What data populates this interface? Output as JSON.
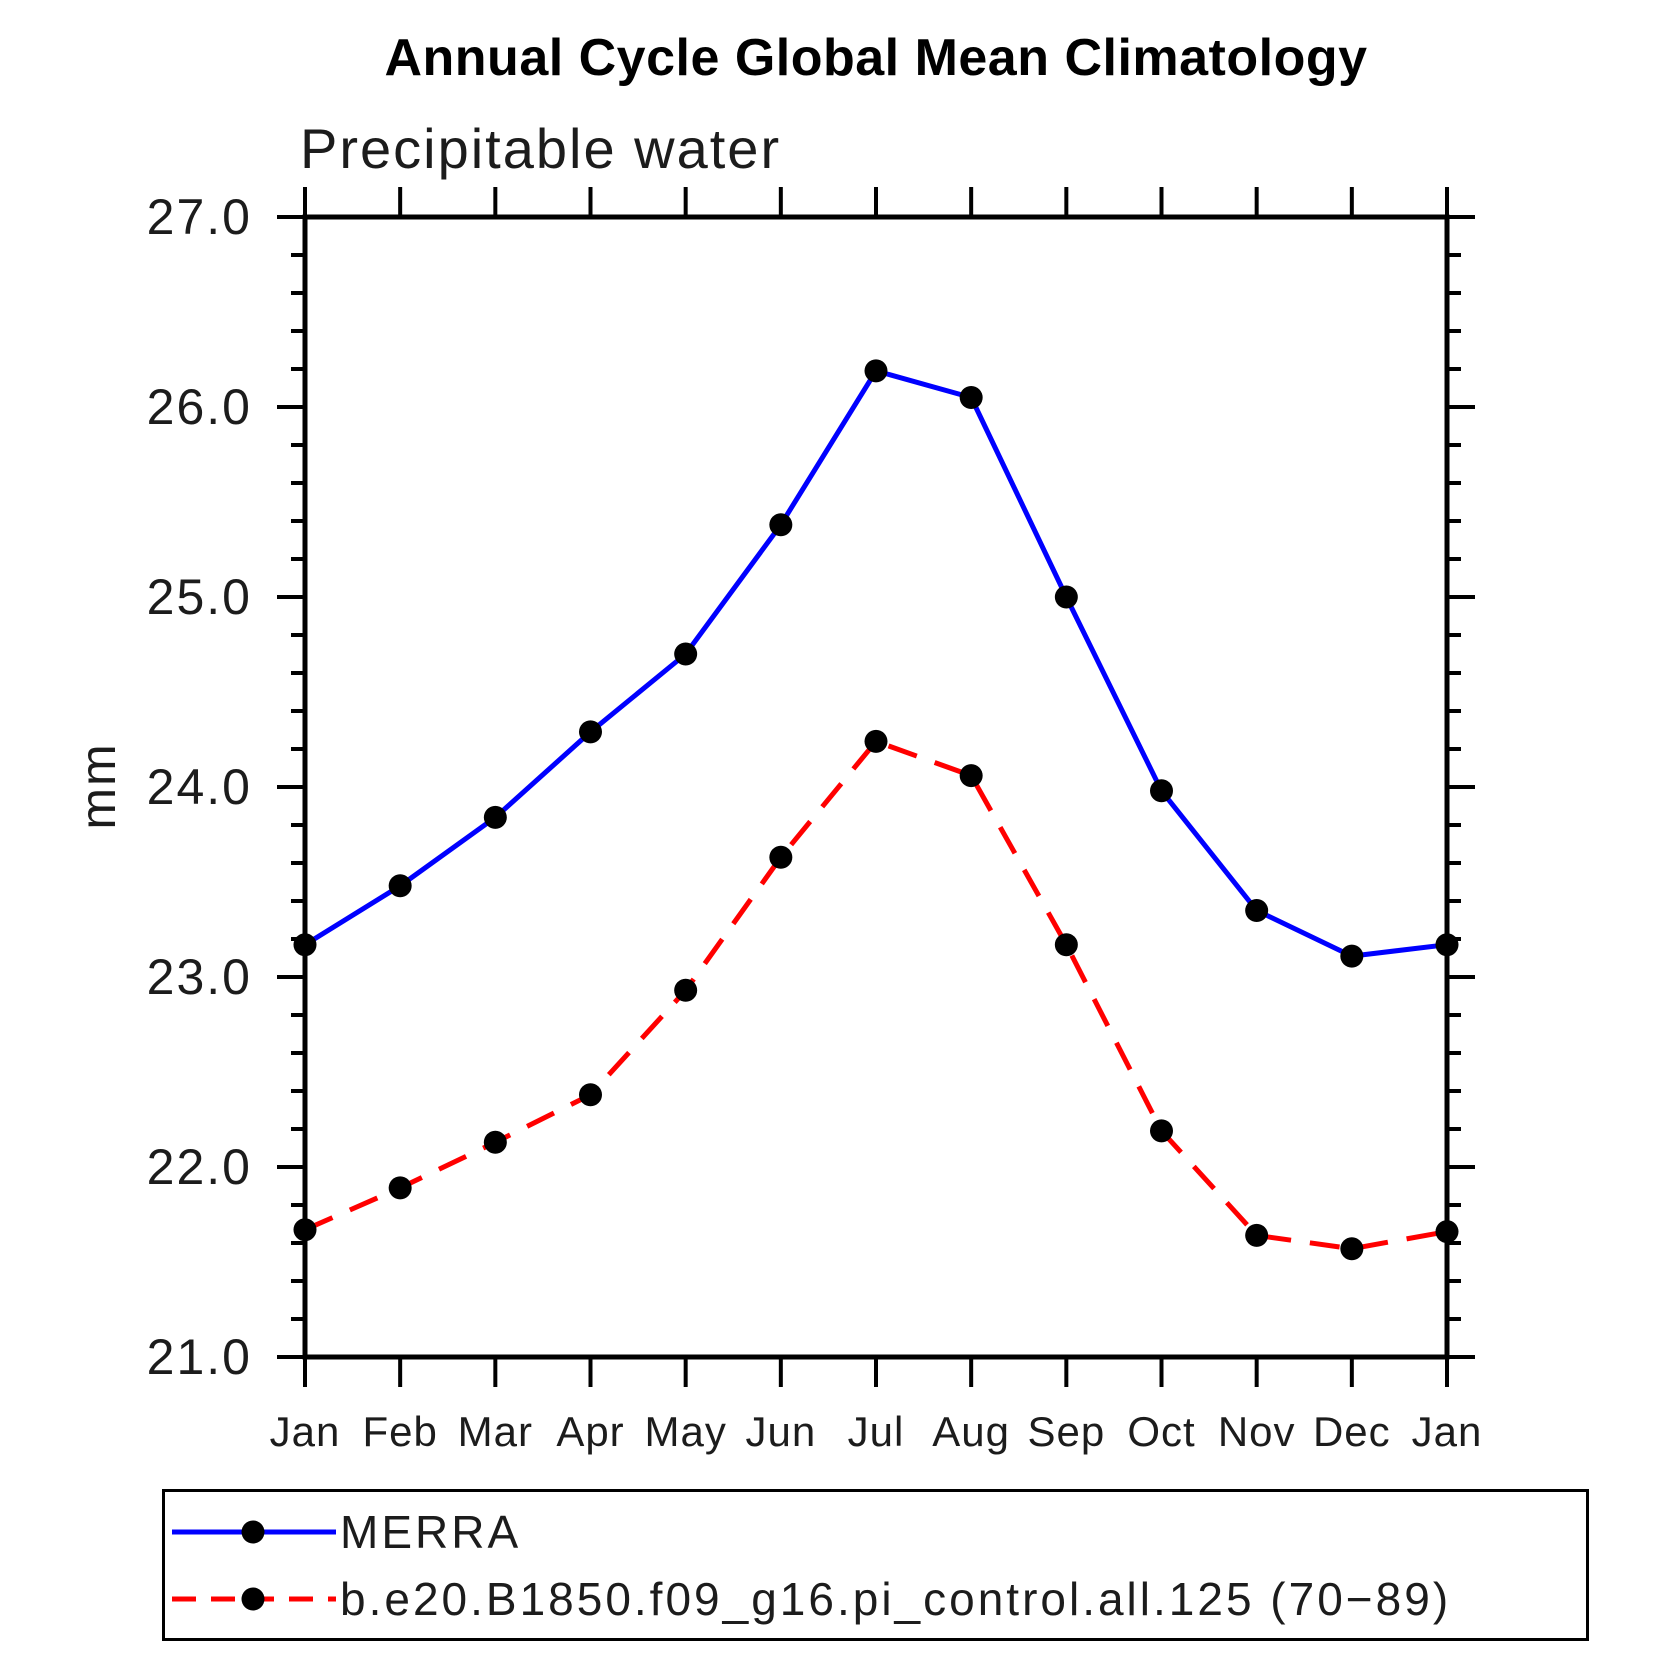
{
  "title": "Annual Cycle Global Mean Climatology",
  "chart_data": {
    "type": "line",
    "title": "Annual Cycle Global Mean Climatology",
    "subtitle": "Precipitable water",
    "ylabel": "mm",
    "xlabel": "",
    "categories": [
      "Jan",
      "Feb",
      "Mar",
      "Apr",
      "May",
      "Jun",
      "Jul",
      "Aug",
      "Sep",
      "Oct",
      "Nov",
      "Dec",
      "Jan"
    ],
    "ylim": [
      21.0,
      27.0
    ],
    "ytick_major_step": 1.0,
    "ytick_minor_step": 0.2,
    "ytick_labels": [
      "21.0",
      "22.0",
      "23.0",
      "24.0",
      "25.0",
      "26.0",
      "27.0"
    ],
    "grid": false,
    "legend_position": "bottom-left-box",
    "series": [
      {
        "name": "MERRA",
        "color": "#0000ff",
        "line_style": "solid",
        "marker": "filled-circle",
        "marker_color": "#000000",
        "values": [
          23.17,
          23.48,
          23.84,
          24.29,
          24.7,
          25.38,
          26.19,
          26.05,
          25.0,
          23.98,
          23.35,
          23.11,
          23.17
        ]
      },
      {
        "name": "b.e20.B1850.f09_g16.pi_control.all.125 (70−89)",
        "color": "#ff0000",
        "line_style": "dashed",
        "marker": "filled-circle",
        "marker_color": "#000000",
        "values": [
          21.67,
          21.89,
          22.13,
          22.38,
          22.93,
          23.63,
          24.24,
          24.06,
          23.17,
          22.19,
          21.64,
          21.57,
          21.66
        ]
      }
    ]
  }
}
